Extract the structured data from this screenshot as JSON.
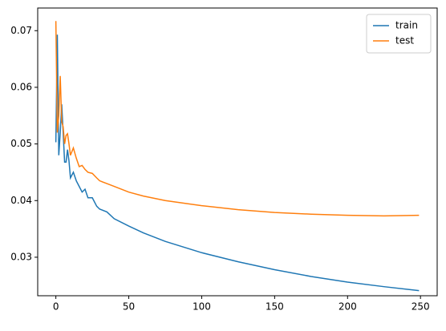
{
  "chart_data": {
    "type": "line",
    "x": [
      0,
      1,
      2,
      3,
      4,
      5,
      6,
      7,
      8,
      9,
      10,
      12,
      14,
      16,
      18,
      20,
      22,
      25,
      28,
      30,
      35,
      40,
      50,
      60,
      75,
      100,
      125,
      150,
      175,
      200,
      225,
      249
    ],
    "series": [
      {
        "name": "train",
        "color": "#1f77b4",
        "values": [
          0.0503,
          0.0693,
          0.048,
          0.052,
          0.057,
          0.052,
          0.0468,
          0.0468,
          0.049,
          0.047,
          0.044,
          0.045,
          0.0435,
          0.0425,
          0.0415,
          0.042,
          0.0405,
          0.0405,
          0.039,
          0.0385,
          0.038,
          0.0368,
          0.0355,
          0.0343,
          0.0328,
          0.0308,
          0.0292,
          0.0278,
          0.0266,
          0.0256,
          0.0248,
          0.0241
        ]
      },
      {
        "name": "test",
        "color": "#ff7f0e",
        "values": [
          0.0717,
          0.052,
          0.055,
          0.062,
          0.054,
          0.053,
          0.05,
          0.0515,
          0.0518,
          0.05,
          0.048,
          0.0493,
          0.0475,
          0.046,
          0.0462,
          0.0455,
          0.045,
          0.0448,
          0.044,
          0.0435,
          0.043,
          0.0425,
          0.0415,
          0.0408,
          0.04,
          0.0391,
          0.0384,
          0.0379,
          0.0376,
          0.0374,
          0.0373,
          0.0374
        ]
      }
    ],
    "xlim": [
      -12.45,
      261.45
    ],
    "xticks": [
      0,
      50,
      100,
      150,
      200,
      250
    ],
    "ylim": [
      0.0232,
      0.074
    ],
    "yticks": [
      {
        "value": 0.03,
        "label": "0.03"
      },
      {
        "value": 0.04,
        "label": "0.04"
      },
      {
        "value": 0.05,
        "label": "0.05"
      },
      {
        "value": 0.06,
        "label": "0.06"
      },
      {
        "value": 0.07,
        "label": "0.07"
      }
    ],
    "grid": false,
    "legend": "upper right"
  }
}
